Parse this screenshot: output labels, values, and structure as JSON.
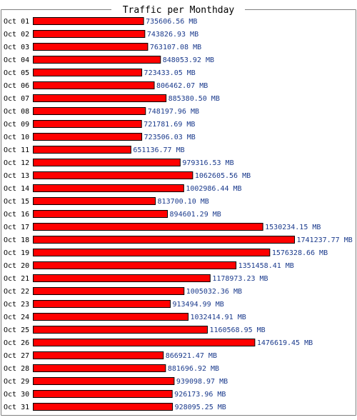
{
  "colors": {
    "bar_fill": "#ff0000",
    "bar_stroke": "#000000",
    "value_text": "#1a3a8c",
    "border": "#7f7f7f",
    "background": "#ffffff"
  },
  "chart_data": {
    "type": "bar",
    "orientation": "horizontal",
    "title": "Traffic per Monthday",
    "unit": "MB",
    "xlim": [
      0,
      1741237.77
    ],
    "grid": false,
    "legend": "none",
    "categories": [
      "Oct 01",
      "Oct 02",
      "Oct 03",
      "Oct 04",
      "Oct 05",
      "Oct 06",
      "Oct 07",
      "Oct 08",
      "Oct 09",
      "Oct 10",
      "Oct 11",
      "Oct 12",
      "Oct 13",
      "Oct 14",
      "Oct 15",
      "Oct 16",
      "Oct 17",
      "Oct 18",
      "Oct 19",
      "Oct 20",
      "Oct 21",
      "Oct 22",
      "Oct 23",
      "Oct 24",
      "Oct 25",
      "Oct 26",
      "Oct 27",
      "Oct 28",
      "Oct 29",
      "Oct 30",
      "Oct 31"
    ],
    "values": [
      735606.56,
      743826.93,
      763107.08,
      848053.92,
      723433.05,
      806462.07,
      885380.5,
      748197.96,
      721781.69,
      723506.03,
      651136.77,
      979316.53,
      1062605.56,
      1002986.44,
      813700.1,
      894601.29,
      1530234.15,
      1741237.77,
      1576328.66,
      1351458.41,
      1178973.23,
      1005032.36,
      913494.99,
      1032414.91,
      1160568.95,
      1476619.45,
      866921.47,
      881696.92,
      939098.97,
      926173.96,
      928095.25
    ],
    "value_labels": [
      "735606.56 MB",
      "743826.93 MB",
      "763107.08 MB",
      "848053.92 MB",
      "723433.05 MB",
      "806462.07 MB",
      "885380.50 MB",
      "748197.96 MB",
      "721781.69 MB",
      "723506.03 MB",
      "651136.77 MB",
      "979316.53 MB",
      "1062605.56 MB",
      "1002986.44 MB",
      "813700.10 MB",
      "894601.29 MB",
      "1530234.15 MB",
      "1741237.77 MB",
      "1576328.66 MB",
      "1351458.41 MB",
      "1178973.23 MB",
      "1005032.36 MB",
      "913494.99 MB",
      "1032414.91 MB",
      "1160568.95 MB",
      "1476619.45 MB",
      "866921.47 MB",
      "881696.92 MB",
      "939098.97 MB",
      "926173.96 MB",
      "928095.25 MB"
    ]
  }
}
